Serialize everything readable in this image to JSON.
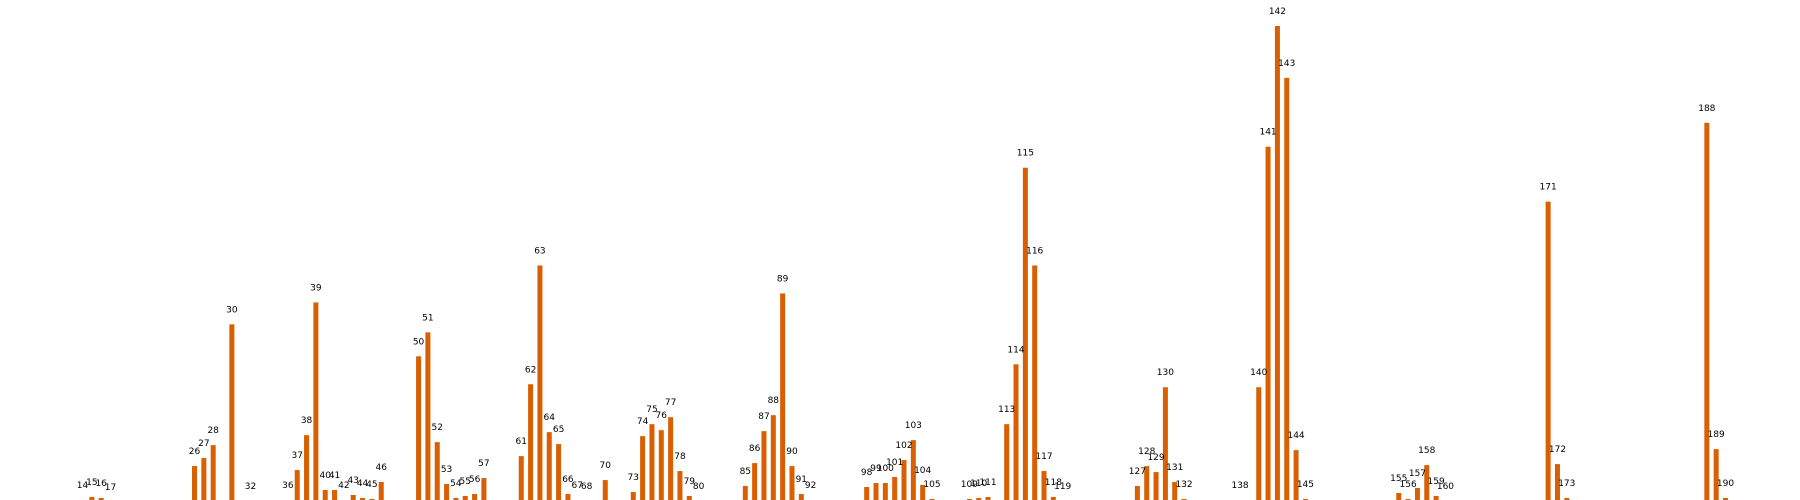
{
  "chart_data": {
    "type": "bar",
    "title": "",
    "xlabel": "",
    "ylabel": "",
    "ylim": [
      0,
      480
    ],
    "grid": false,
    "bar_color": "#d95f02",
    "x": [
      14,
      15,
      16,
      17,
      26,
      27,
      28,
      30,
      32,
      36,
      37,
      38,
      39,
      40,
      41,
      42,
      43,
      44,
      45,
      46,
      50,
      51,
      52,
      53,
      54,
      55,
      56,
      57,
      61,
      62,
      63,
      64,
      65,
      66,
      67,
      68,
      70,
      73,
      74,
      75,
      76,
      77,
      78,
      79,
      80,
      85,
      86,
      87,
      88,
      89,
      90,
      91,
      92,
      98,
      99,
      100,
      101,
      102,
      103,
      104,
      105,
      109,
      110,
      111,
      113,
      114,
      115,
      116,
      117,
      118,
      119,
      127,
      128,
      129,
      130,
      131,
      132,
      138,
      140,
      141,
      142,
      143,
      144,
      145,
      155,
      156,
      157,
      158,
      159,
      160,
      171,
      172,
      173,
      188,
      189,
      190
    ],
    "labels": [
      "14",
      "15",
      "16",
      "17",
      "26",
      "27",
      "28",
      "30",
      "32",
      "36",
      "37",
      "38",
      "39",
      "40",
      "41",
      "42",
      "43",
      "44",
      "45",
      "46",
      "50",
      "51",
      "52",
      "53",
      "54",
      "55",
      "56",
      "57",
      "61",
      "62",
      "63",
      "64",
      "65",
      "66",
      "67",
      "68",
      "70",
      "73",
      "74",
      "75",
      "76",
      "77",
      "78",
      "79",
      "80",
      "85",
      "86",
      "87",
      "88",
      "89",
      "90",
      "91",
      "92",
      "98",
      "99",
      "100",
      "101",
      "102",
      "103",
      "104",
      "105",
      "109",
      "110",
      "111",
      "113",
      "114",
      "115",
      "116",
      "117",
      "118",
      "119",
      "127",
      "128",
      "129",
      "130",
      "131",
      "132",
      "138",
      "140",
      "141",
      "142",
      "143",
      "144",
      "145",
      "155",
      "156",
      "157",
      "158",
      "159",
      "160",
      "171",
      "172",
      "173",
      "188",
      "189",
      "190"
    ],
    "values": [
      2,
      5,
      4,
      0,
      36,
      44,
      57,
      178,
      1,
      2,
      32,
      67,
      200,
      12,
      12,
      2,
      7,
      4,
      3,
      20,
      146,
      170,
      60,
      18,
      4,
      6,
      8,
      24,
      46,
      118,
      237,
      70,
      58,
      8,
      2,
      1,
      22,
      10,
      66,
      78,
      72,
      85,
      31,
      6,
      1,
      16,
      39,
      71,
      87,
      209,
      36,
      8,
      2,
      15,
      19,
      19,
      25,
      42,
      62,
      17,
      3,
      3,
      4,
      5,
      78,
      138,
      335,
      237,
      31,
      5,
      1,
      16,
      36,
      30,
      115,
      20,
      3,
      2,
      115,
      356,
      477,
      425,
      52,
      3,
      9,
      3,
      14,
      37,
      6,
      1,
      301,
      38,
      4,
      380,
      53,
      4
    ]
  }
}
